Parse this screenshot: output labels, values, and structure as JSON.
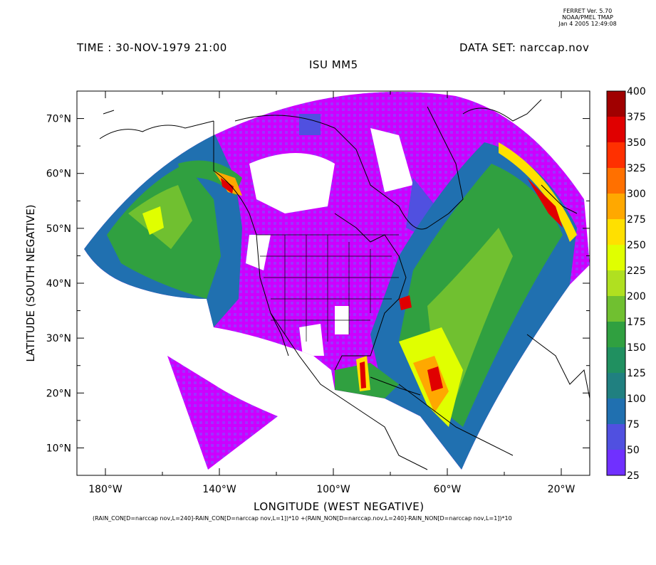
{
  "version_stamp": [
    "FERRET Ver. 5.70",
    "NOAA/PMEL TMAP",
    "Jan  4 2005 12:49:08"
  ],
  "time_label": "TIME : 30-NOV-1979 21:00",
  "dataset_label": "DATA SET: narccap.nov",
  "model_title": "ISU MM5",
  "x_axis_title": "LONGITUDE (WEST NEGATIVE)",
  "y_axis_title": "LATITUDE (SOUTH NEGATIVE)",
  "expression_caption": "(RAIN_CON[D=narccap nov,L=240]-RAIN_CON[D=narccap nov,L=1])*10 +(RAIN_NON[D=narccap.nov,L=240]-RAIN_NON[D=narccap nov,L=1])*10",
  "x_ticks": [
    {
      "value": -180,
      "label": "180°W"
    },
    {
      "value": -140,
      "label": "140°W"
    },
    {
      "value": -100,
      "label": "100°W"
    },
    {
      "value": -60,
      "label": "60°W"
    },
    {
      "value": -20,
      "label": "20°W"
    }
  ],
  "y_ticks": [
    {
      "value": 10,
      "label": "10°N"
    },
    {
      "value": 20,
      "label": "20°N"
    },
    {
      "value": 30,
      "label": "30°N"
    },
    {
      "value": 40,
      "label": "40°N"
    },
    {
      "value": 50,
      "label": "50°N"
    },
    {
      "value": 60,
      "label": "60°N"
    },
    {
      "value": 70,
      "label": "70°N"
    }
  ],
  "x_range": [
    -190,
    -10
  ],
  "y_range": [
    5,
    75
  ],
  "colorbar": {
    "levels": [
      {
        "label": "400",
        "color": "#a00000"
      },
      {
        "label": "375",
        "color": "#e00000"
      },
      {
        "label": "350",
        "color": "#ff3000"
      },
      {
        "label": "325",
        "color": "#ff7000"
      },
      {
        "label": "300",
        "color": "#ffa800"
      },
      {
        "label": "275",
        "color": "#ffe000"
      },
      {
        "label": "250",
        "color": "#e0ff00"
      },
      {
        "label": "225",
        "color": "#b0e020"
      },
      {
        "label": "200",
        "color": "#70c030"
      },
      {
        "label": "175",
        "color": "#30a040"
      },
      {
        "label": "150",
        "color": "#209060"
      },
      {
        "label": "125",
        "color": "#208080"
      },
      {
        "label": "100",
        "color": "#2070b0"
      },
      {
        "label": "75",
        "color": "#5050e0"
      },
      {
        "label": "50",
        "color": "#7030ff"
      },
      {
        "label": "25",
        "color": "#cc00ff"
      }
    ]
  }
}
